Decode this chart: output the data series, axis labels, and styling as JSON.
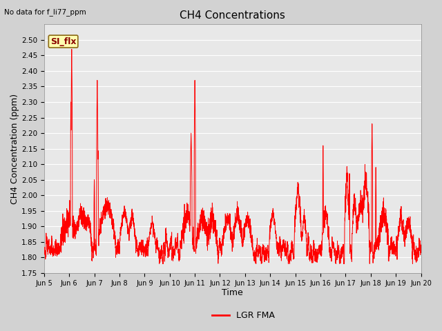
{
  "title": "CH4 Concentrations",
  "xlabel": "Time",
  "ylabel": "CH4 Concentration (ppm)",
  "top_left_note": "No data for f_li77_ppm",
  "annotation_label": "SI_flx",
  "legend_label": "LGR FMA",
  "line_color": "#ff0000",
  "fig_facecolor": "#d2d2d2",
  "plot_facecolor": "#e8e8e8",
  "grid_color": "#ffffff",
  "ylim": [
    1.75,
    2.55
  ],
  "yticks": [
    1.75,
    1.8,
    1.85,
    1.9,
    1.95,
    2.0,
    2.05,
    2.1,
    2.15,
    2.2,
    2.25,
    2.3,
    2.35,
    2.4,
    2.45,
    2.5
  ],
  "x_tick_labels": [
    "Jun 5",
    "Jun 6",
    "Jun 7",
    "Jun 8",
    "Jun 9",
    "Jun 10",
    "Jun 11",
    "Jun 12",
    "Jun 13",
    "Jun 14",
    "Jun 15",
    "Jun 16",
    "Jun 17",
    "Jun 18",
    "Jun 19",
    "Jun 20"
  ],
  "n_days": 15,
  "pts_per_day": 240
}
